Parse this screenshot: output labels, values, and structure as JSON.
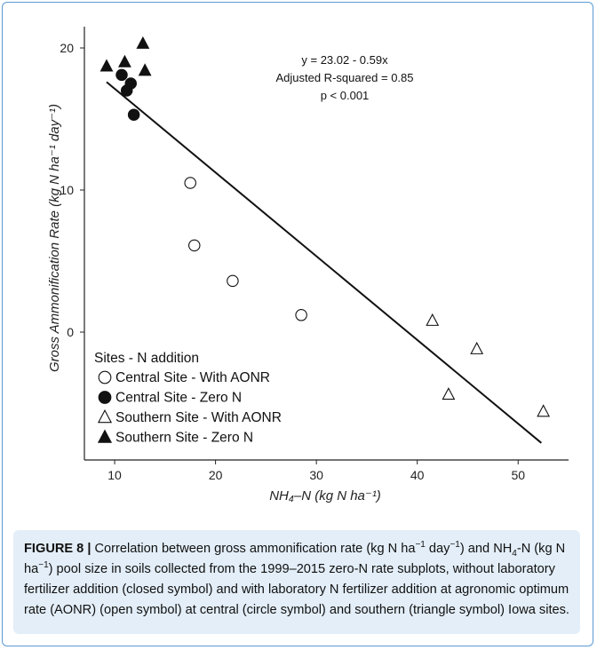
{
  "chart_data": {
    "type": "scatter",
    "title": "",
    "xlabel": "NH₄–N (kg N ha⁻¹)",
    "ylabel": "Gross Ammonification Rate (kg N ha⁻¹ day⁻¹)",
    "xlim": [
      7,
      55
    ],
    "ylim": [
      -9,
      21.5
    ],
    "x_ticks": [
      10,
      20,
      30,
      40,
      50
    ],
    "y_ticks": [
      0,
      10,
      20
    ],
    "grid": false,
    "legend_position": "bottom-left",
    "legend_title": "Sites - N addition",
    "series": [
      {
        "name": "Central Site - With AONR",
        "marker": "open-circle",
        "points": [
          [
            17.5,
            10.5
          ],
          [
            17.9,
            6.1
          ],
          [
            21.7,
            3.6
          ],
          [
            28.5,
            1.2
          ]
        ]
      },
      {
        "name": "Central Site - Zero N",
        "marker": "filled-circle",
        "points": [
          [
            10.7,
            18.1
          ],
          [
            11.2,
            17.0
          ],
          [
            11.6,
            17.5
          ],
          [
            11.9,
            15.3
          ]
        ]
      },
      {
        "name": "Southern Site - With AONR",
        "marker": "open-triangle",
        "points": [
          [
            41.5,
            0.8
          ],
          [
            43.1,
            -4.4
          ],
          [
            45.9,
            -1.2
          ],
          [
            52.5,
            -5.6
          ]
        ]
      },
      {
        "name": "Southern Site - Zero N",
        "marker": "filled-triangle",
        "points": [
          [
            9.2,
            18.7
          ],
          [
            11.0,
            19.0
          ],
          [
            12.8,
            20.3
          ],
          [
            13.0,
            18.4
          ]
        ]
      }
    ],
    "trend_line": {
      "x": [
        9.2,
        52.3
      ],
      "y": [
        17.6,
        -7.8
      ]
    },
    "annotations": [
      "y = 23.02 - 0.59x",
      "Adjusted R-squared = 0.85",
      "p < 0.001"
    ]
  },
  "caption": {
    "label": "FIGURE 8 |",
    "text_html": " Correlation between gross ammonification rate (kg N ha<sup>−1</sup> day<sup>−1</sup>) and NH<sub>4</sub>-N (kg N ha<sup>−1</sup>) pool size in soils collected from the 1999–2015 zero-N rate subplots, without laboratory fertilizer addition (closed symbol) and with laboratory N fertilizer addition at agronomic optimum rate (AONR) (open symbol) at central (circle symbol) and southern (triangle symbol) Iowa sites."
  }
}
